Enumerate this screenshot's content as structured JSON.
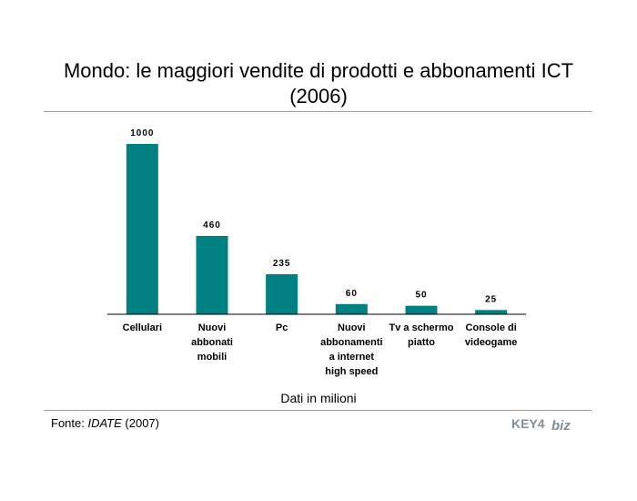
{
  "title": {
    "line1": "Mondo: le maggiori vendite di prodotti e abbonamenti ICT",
    "line2": "(2006)"
  },
  "caption": "Dati in milioni",
  "source": {
    "prefix": "Fonte: ",
    "name": "IDATE",
    "year": " (2007)"
  },
  "logo": {
    "text_left": "KEY4",
    "text_right": "biz"
  },
  "colors": {
    "bar": "#008080",
    "axis": "#000000",
    "rule": "#9a9a9a",
    "logo": "#7f8f9c"
  },
  "chart_data": {
    "type": "bar",
    "categories": [
      [
        "Cellulari"
      ],
      [
        "Nuovi",
        "abbonati",
        "mobili"
      ],
      [
        "Pc"
      ],
      [
        "Nuovi",
        "abbonamenti",
        "a internet",
        "high speed"
      ],
      [
        "Tv a schermo",
        "piatto"
      ],
      [
        "Console di",
        "videogame"
      ]
    ],
    "values": [
      1000,
      460,
      235,
      60,
      50,
      25
    ],
    "value_labels": [
      "1000",
      "460",
      "235",
      "60",
      "50",
      "25"
    ],
    "ylim": [
      0,
      1000
    ],
    "grid": false,
    "legend": "none"
  }
}
